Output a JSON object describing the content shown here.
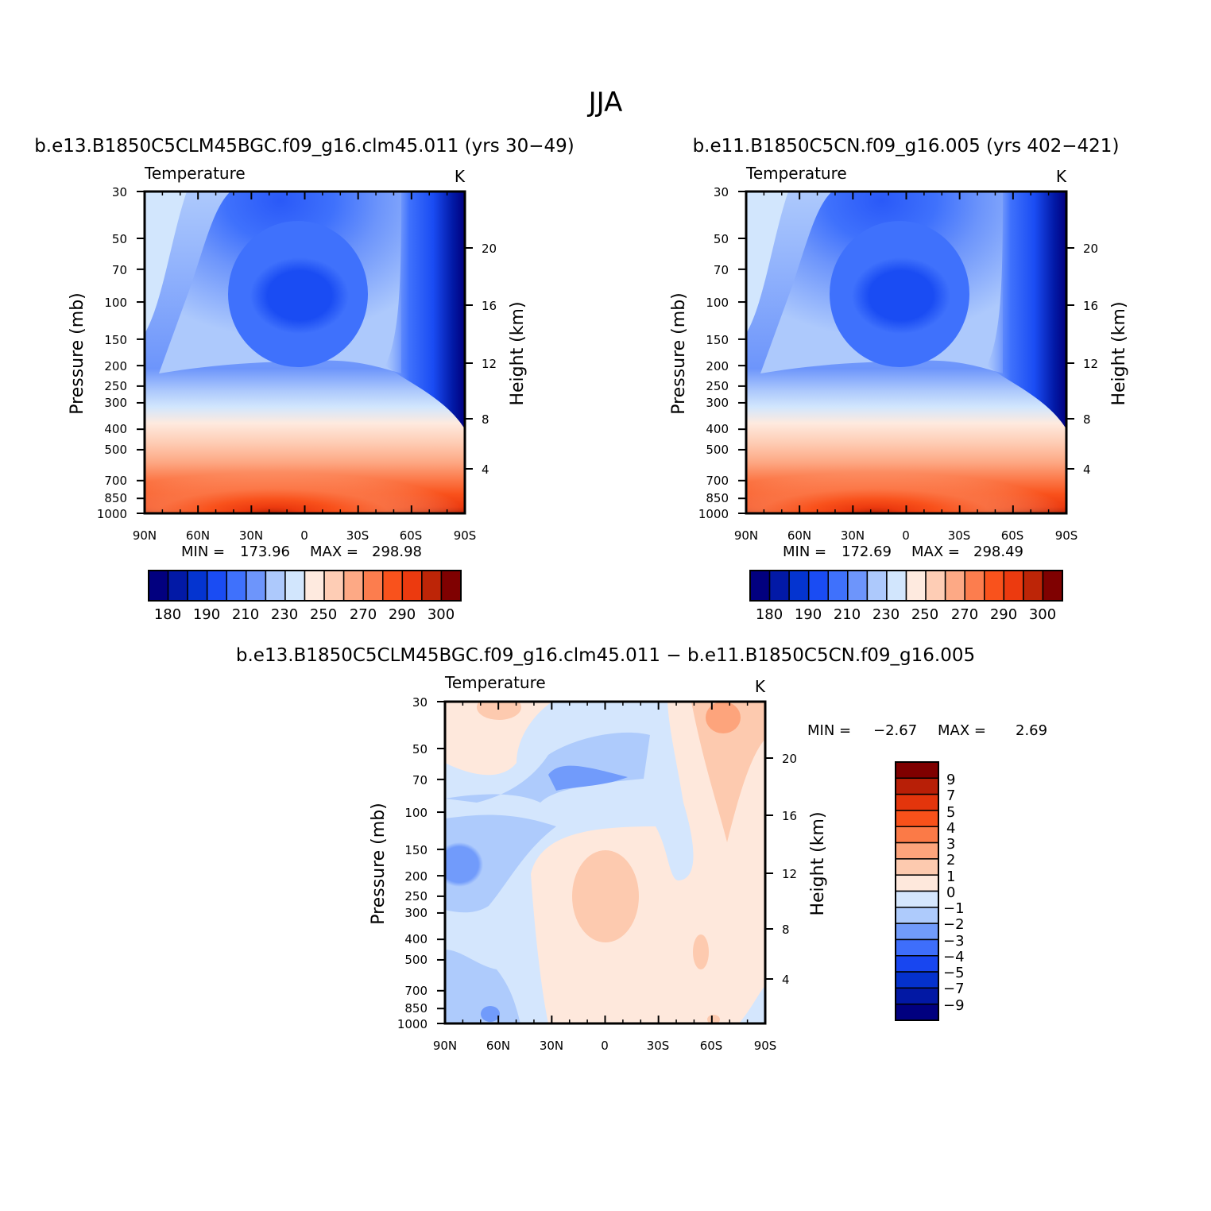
{
  "figure": {
    "season": "JJA"
  },
  "chart_data": [
    {
      "type": "heatmap",
      "plot_type": "filled-contour",
      "title": "b.e13.B1850C5CLM45BGC.f09_g16.clm45.011 (yrs 30−49)",
      "variable": "Temperature",
      "units": "K",
      "xlabel": "",
      "ylabel": "Pressure (mb)",
      "ylabel_right": "Height (km)",
      "x_ticks": [
        "90N",
        "60N",
        "30N",
        "0",
        "30S",
        "60S",
        "90S"
      ],
      "y_ticks": [
        "30",
        "50",
        "70",
        "100",
        "150",
        "200",
        "250",
        "300",
        "400",
        "500",
        "700",
        "850",
        "1000"
      ],
      "y_ticks_right": [
        "20",
        "16",
        "12",
        "8",
        "4"
      ],
      "y_scale": "log",
      "ylim": [
        1000,
        30
      ],
      "min_label": "MIN =",
      "min_value": "173.96",
      "max_label": "MAX =",
      "max_value": "298.98",
      "min": 173.96,
      "max": 298.98,
      "colorbar": {
        "orientation": "horizontal",
        "levels": [
          180,
          185,
          190,
          200,
          210,
          220,
          230,
          240,
          250,
          260,
          270,
          280,
          290,
          295,
          300
        ],
        "labels": [
          "180",
          "190",
          "210",
          "230",
          "250",
          "270",
          "290",
          "300"
        ]
      }
    },
    {
      "type": "heatmap",
      "plot_type": "filled-contour",
      "title": "b.e11.B1850C5CN.f09_g16.005 (yrs 402−421)",
      "variable": "Temperature",
      "units": "K",
      "xlabel": "",
      "ylabel": "Pressure (mb)",
      "ylabel_right": "Height (km)",
      "x_ticks": [
        "90N",
        "60N",
        "30N",
        "0",
        "30S",
        "60S",
        "90S"
      ],
      "y_ticks": [
        "30",
        "50",
        "70",
        "100",
        "150",
        "200",
        "250",
        "300",
        "400",
        "500",
        "700",
        "850",
        "1000"
      ],
      "y_ticks_right": [
        "20",
        "16",
        "12",
        "8",
        "4"
      ],
      "y_scale": "log",
      "ylim": [
        1000,
        30
      ],
      "min_label": "MIN =",
      "min_value": "172.69",
      "max_label": "MAX =",
      "max_value": "298.49",
      "min": 172.69,
      "max": 298.49,
      "colorbar": {
        "orientation": "horizontal",
        "levels": [
          180,
          185,
          190,
          200,
          210,
          220,
          230,
          240,
          250,
          260,
          270,
          280,
          290,
          295,
          300
        ],
        "labels": [
          "180",
          "190",
          "210",
          "230",
          "250",
          "270",
          "290",
          "300"
        ]
      }
    },
    {
      "type": "heatmap",
      "plot_type": "filled-contour",
      "title": "b.e13.B1850C5CLM45BGC.f09_g16.clm45.011 − b.e11.B1850C5CN.f09_g16.005",
      "variable": "Temperature",
      "units": "K",
      "xlabel": "",
      "ylabel": "Pressure (mb)",
      "ylabel_right": "Height (km)",
      "x_ticks": [
        "90N",
        "60N",
        "30N",
        "0",
        "30S",
        "60S",
        "90S"
      ],
      "y_ticks": [
        "30",
        "50",
        "70",
        "100",
        "150",
        "200",
        "250",
        "300",
        "400",
        "500",
        "700",
        "850",
        "1000"
      ],
      "y_ticks_right": [
        "20",
        "16",
        "12",
        "8",
        "4"
      ],
      "y_scale": "log",
      "ylim": [
        1000,
        30
      ],
      "min_label": "MIN =",
      "min_value": "−2.67",
      "max_label": "MAX =",
      "max_value": "2.69",
      "min": -2.67,
      "max": 2.69,
      "colorbar": {
        "orientation": "vertical",
        "levels": [
          -9,
          -7,
          -5,
          -4,
          -3,
          -2,
          -1,
          0,
          1,
          2,
          3,
          4,
          5,
          7,
          9
        ],
        "labels": [
          "9",
          "7",
          "5",
          "4",
          "3",
          "2",
          "1",
          "0",
          "−1",
          "−2",
          "−3",
          "−4",
          "−5",
          "−7",
          "−9"
        ]
      }
    }
  ],
  "colors": {
    "temperature_scale": [
      "#02007f",
      "#0219a6",
      "#0434d0",
      "#1a4cf3",
      "#3f71fc",
      "#6d95fb",
      "#adc9fc",
      "#d2e6fd",
      "#feeadf",
      "#fecdb5",
      "#fda985",
      "#fc7d4e",
      "#f9521c",
      "#ec3a0f",
      "#bd2507",
      "#7f0101"
    ],
    "difference_scale": [
      "#01007f",
      "#0218a4",
      "#0431cd",
      "#1846f0",
      "#3e6efb",
      "#719bfb",
      "#aecbfc",
      "#d4e6fd",
      "#fee8dc",
      "#fdcaaf",
      "#fda47c",
      "#fb7a47",
      "#f8511a",
      "#e3350c",
      "#b81f07",
      "#7f0000"
    ]
  }
}
